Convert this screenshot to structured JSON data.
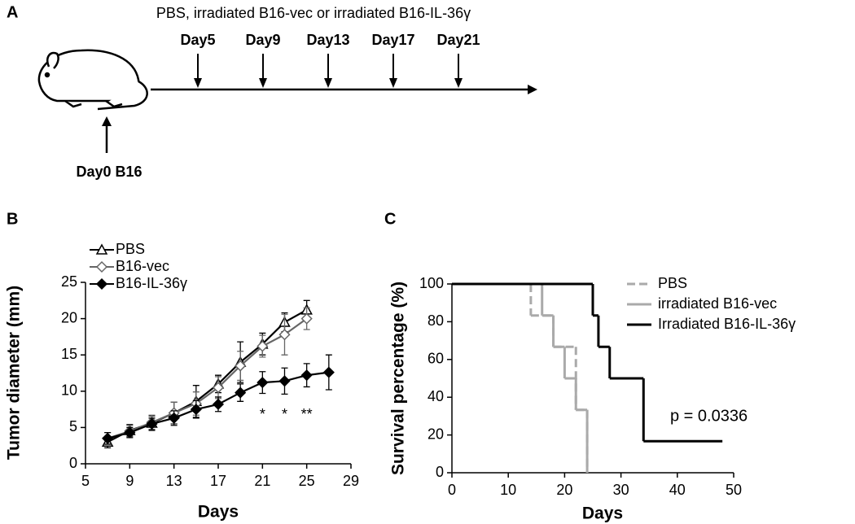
{
  "panel_labels": [
    "A",
    "B",
    "C"
  ],
  "timeline": {
    "treatment": "PBS, irradiated B16-vec or irradiated B16-IL-36γ",
    "days": [
      "Day5",
      "Day9",
      "Day13",
      "Day17",
      "Day21"
    ],
    "start": "Day0 B16"
  },
  "chart_data": [
    {
      "type": "line",
      "ylabel": "Tumor diameter (mm)",
      "xlabel": "Days",
      "xlim": [
        5,
        29
      ],
      "xticks": [
        5,
        9,
        13,
        17,
        21,
        25,
        29
      ],
      "ylim": [
        0,
        25
      ],
      "yticks": [
        0,
        5,
        10,
        15,
        20,
        25
      ],
      "legend": "top-left",
      "series": [
        {
          "name": "PBS",
          "color": "#000000",
          "marker": "triangle",
          "marker_fill": "#ffffff",
          "x": [
            7,
            9,
            11,
            13,
            15,
            17,
            19,
            21,
            23,
            25
          ],
          "values": [
            3.0,
            4.6,
            5.6,
            7.0,
            8.6,
            11.0,
            14.0,
            16.5,
            19.5,
            21.2
          ],
          "errors": [
            0.8,
            0.8,
            1.0,
            1.5,
            2.2,
            1.2,
            2.8,
            1.5,
            1.3,
            1.3
          ]
        },
        {
          "name": "B16-vec",
          "color": "#666666",
          "marker": "diamond",
          "marker_fill": "#ffffff",
          "x": [
            7,
            9,
            11,
            13,
            15,
            17,
            19,
            21,
            23,
            25
          ],
          "values": [
            3.5,
            4.5,
            5.7,
            7.0,
            8.3,
            10.5,
            13.5,
            16.2,
            17.8,
            20.0
          ],
          "errors": [
            0.8,
            0.8,
            1.0,
            1.5,
            1.6,
            1.5,
            2.0,
            1.5,
            2.8,
            1.5
          ]
        },
        {
          "name": "B16-IL-36γ",
          "color": "#000000",
          "marker": "diamond",
          "marker_fill": "#000000",
          "x": [
            7,
            9,
            11,
            13,
            15,
            17,
            19,
            21,
            23,
            25,
            27
          ],
          "values": [
            3.5,
            4.3,
            5.5,
            6.3,
            7.5,
            8.2,
            9.8,
            11.2,
            11.4,
            12.2,
            12.6
          ],
          "errors": [
            0.8,
            0.7,
            0.8,
            1.0,
            1.2,
            1.0,
            1.2,
            1.5,
            1.8,
            1.6,
            2.4
          ]
        }
      ],
      "annotations": [
        {
          "text": "*",
          "x": 21
        },
        {
          "text": "*",
          "x": 23
        },
        {
          "text": "**",
          "x": 25
        }
      ]
    },
    {
      "type": "step",
      "ylabel": "Survival percentage (%)",
      "xlabel": "Days",
      "xlim": [
        0,
        50
      ],
      "xticks": [
        0,
        10,
        20,
        30,
        40,
        50
      ],
      "ylim": [
        0,
        100
      ],
      "yticks": [
        0,
        20,
        40,
        60,
        80,
        100
      ],
      "legend": "top-right",
      "annotation": "p = 0.0336",
      "series": [
        {
          "name": "PBS",
          "color": "#aaaaaa",
          "dashed": true,
          "x": [
            0,
            14,
            18,
            22,
            24
          ],
          "values": [
            100,
            83.3,
            66.7,
            33.3,
            0
          ]
        },
        {
          "name": "irradiated B16-vec",
          "color": "#aaaaaa",
          "dashed": false,
          "x": [
            0,
            16,
            18,
            20,
            22,
            24
          ],
          "values": [
            100,
            83.3,
            66.7,
            50,
            33.3,
            0
          ]
        },
        {
          "name": "Irradiated B16-IL-36γ",
          "color": "#000000",
          "dashed": false,
          "x": [
            0,
            25,
            26,
            28,
            34,
            48
          ],
          "values": [
            100,
            83.3,
            66.7,
            50,
            16.7,
            16.7
          ]
        }
      ]
    }
  ]
}
